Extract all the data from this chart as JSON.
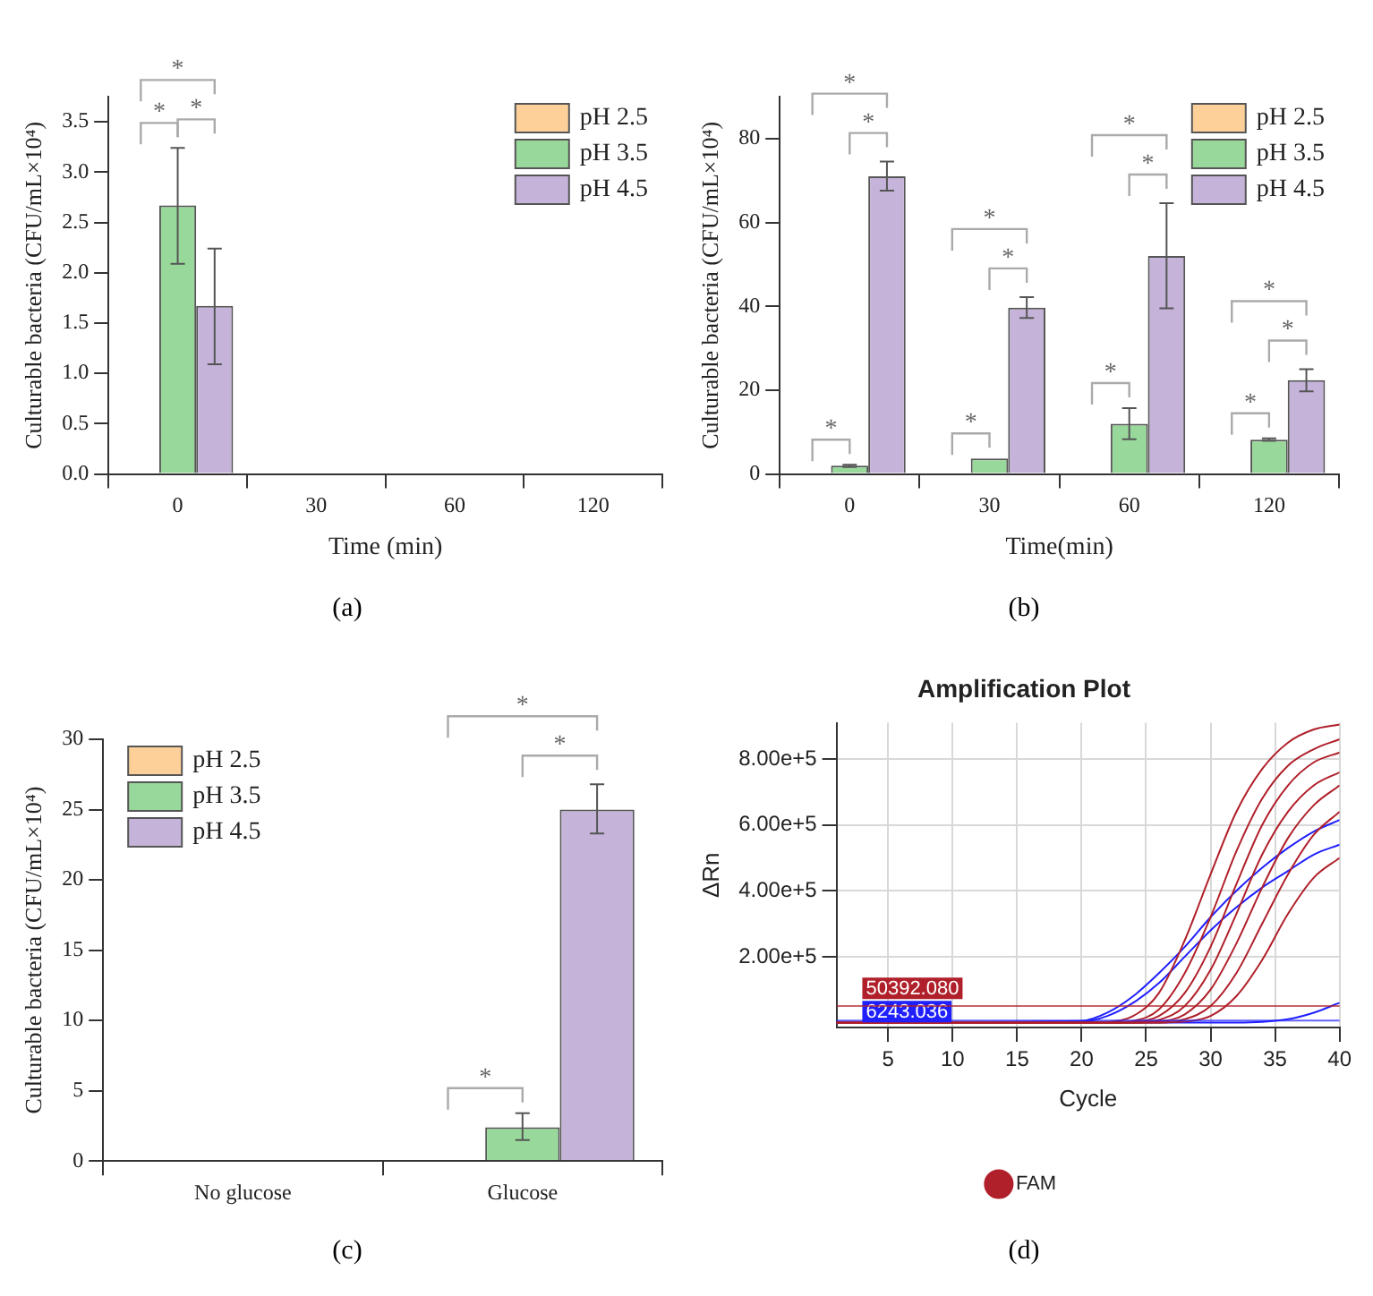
{
  "chart_data": [
    {
      "type": "bar",
      "categories": [
        "0",
        "30",
        "60",
        "120"
      ],
      "xlabel": "Time (min)",
      "ylabel": "Culturable bacteria (CFU/mL×10⁴)",
      "ylim": [
        0,
        3.75
      ],
      "yticks": [
        {
          "value": 0,
          "label": "0.0"
        },
        {
          "value": 0.5,
          "label": "0.5"
        },
        {
          "value": 1,
          "label": "1.0"
        },
        {
          "value": 1.5,
          "label": "1.5"
        },
        {
          "value": 2,
          "label": "2.0"
        },
        {
          "value": 2.5,
          "label": "2.5"
        },
        {
          "value": 3,
          "label": "3.0"
        },
        {
          "value": 3.5,
          "label": "3.5"
        }
      ],
      "legend": "top right",
      "series": [
        {
          "name": "pH 2.5",
          "color": "#fdd09a",
          "values": [
            0,
            0,
            0,
            0
          ]
        },
        {
          "name": "pH 3.5",
          "color": "#98d89a",
          "values": [
            2.67,
            0,
            0,
            0
          ],
          "errors": [
            [
              2.09,
              3.24
            ],
            null,
            null,
            null
          ]
        },
        {
          "name": "pH 4.5",
          "color": "#c5b3d9",
          "values": [
            1.67,
            0,
            0,
            0
          ],
          "errors": [
            [
              1.09,
              2.24
            ],
            null,
            null,
            null
          ]
        }
      ],
      "annotations": [
        "*",
        "*",
        "*",
        "(a)"
      ]
    },
    {
      "type": "bar",
      "categories": [
        "0",
        "30",
        "60",
        "120"
      ],
      "xlabel": "Time(min)",
      "ylabel": "Culturable bacteria (CFU/mL×10⁴)",
      "ylim": [
        0,
        90
      ],
      "yticks": [
        0,
        20,
        40,
        60,
        80
      ],
      "legend": "top right",
      "series": [
        {
          "name": "pH 2.5",
          "color": "#fdd09a",
          "values": [
            0,
            0,
            0,
            0
          ]
        },
        {
          "name": "pH 3.5",
          "color": "#98d89a",
          "values": [
            2,
            3.7,
            12,
            8.2
          ],
          "errors": [
            [
              1.7,
              2.2
            ],
            null,
            [
              8.3,
              15.7
            ],
            [
              7.9,
              8.5
            ]
          ]
        },
        {
          "name": "pH 4.5",
          "color": "#c5b3d9",
          "values": [
            71,
            39.7,
            52,
            22.4
          ],
          "errors": [
            [
              67.6,
              74.5
            ],
            [
              37.2,
              42.2
            ],
            [
              39.5,
              64.6
            ],
            [
              19.7,
              25
            ]
          ]
        }
      ],
      "annotations": [
        "*",
        "*",
        "*",
        "*",
        "*",
        "*",
        "*",
        "*",
        "*",
        "*",
        "*",
        "*",
        "(b)"
      ]
    },
    {
      "type": "bar",
      "categories": [
        "No glucose",
        "Glucose"
      ],
      "ylabel": "Culturable bacteria (CFU/mL×10⁴)",
      "ylim": [
        0,
        30
      ],
      "yticks": [
        0,
        5,
        10,
        15,
        20,
        25,
        30
      ],
      "legend": "top left",
      "series": [
        {
          "name": "pH 2.5",
          "color": "#fdd09a",
          "values": [
            0,
            0
          ]
        },
        {
          "name": "pH 3.5",
          "color": "#98d89a",
          "values": [
            0,
            2.4
          ],
          "errors": [
            null,
            [
              1.5,
              3.4
            ]
          ]
        },
        {
          "name": "pH 4.5",
          "color": "#c5b3d9",
          "values": [
            0,
            25
          ],
          "errors": [
            null,
            [
              23.3,
              26.8
            ]
          ]
        }
      ],
      "annotations": [
        "*",
        "*",
        "*",
        "(c)"
      ]
    },
    {
      "type": "line",
      "title": "Amplification Plot",
      "xlabel": "Cycle",
      "ylabel": "ΔRn",
      "x": [
        1,
        20,
        22,
        24,
        26,
        28,
        30,
        32,
        34,
        36,
        38,
        40
      ],
      "xlim": [
        1,
        40
      ],
      "xticks": [
        5,
        10,
        15,
        20,
        25,
        30,
        35,
        40
      ],
      "ylim": [
        -15000,
        910000
      ],
      "yticks": [
        {
          "value": 200000,
          "label": "2.00e+5"
        },
        {
          "value": 400000,
          "label": "4.00e+5"
        },
        {
          "value": 600000,
          "label": "6.00e+5"
        },
        {
          "value": 800000,
          "label": "8.00e+5"
        }
      ],
      "grid": true,
      "legend": "bottom",
      "marker": "none",
      "series": [
        {
          "name": "FAM",
          "color": "#b0202a",
          "values": [
            0,
            0,
            2000,
            20000,
            90000,
            250000,
            450000,
            640000,
            770000,
            850000,
            890000,
            905000
          ]
        },
        {
          "color": "#b0202a",
          "values": [
            0,
            0,
            0,
            5000,
            40000,
            150000,
            320000,
            520000,
            680000,
            780000,
            830000,
            860000
          ]
        },
        {
          "color": "#b0202a",
          "values": [
            0,
            0,
            0,
            2000,
            20000,
            90000,
            230000,
            420000,
            600000,
            720000,
            790000,
            820000
          ]
        },
        {
          "color": "#b0202a",
          "values": [
            0,
            0,
            0,
            0,
            8000,
            50000,
            160000,
            330000,
            510000,
            640000,
            720000,
            760000
          ]
        },
        {
          "color": "#b0202a",
          "values": [
            0,
            0,
            0,
            0,
            3000,
            25000,
            100000,
            240000,
            410000,
            560000,
            660000,
            720000
          ]
        },
        {
          "color": "#b0202a",
          "values": [
            0,
            0,
            0,
            0,
            0,
            10000,
            50000,
            150000,
            300000,
            450000,
            570000,
            640000
          ]
        },
        {
          "color": "#b0202a",
          "values": [
            0,
            0,
            0,
            0,
            0,
            3000,
            20000,
            80000,
            190000,
            330000,
            440000,
            500000
          ]
        },
        {
          "color": "#2020ff",
          "values": [
            0,
            5000,
            30000,
            80000,
            150000,
            230000,
            320000,
            400000,
            470000,
            530000,
            580000,
            615000
          ]
        },
        {
          "color": "#2020ff",
          "values": [
            0,
            3000,
            20000,
            60000,
            120000,
            200000,
            280000,
            350000,
            410000,
            460000,
            510000,
            540000
          ]
        },
        {
          "color": "#2020ff",
          "values": [
            0,
            0,
            0,
            0,
            0,
            0,
            0,
            0,
            2000,
            10000,
            30000,
            60000
          ]
        }
      ],
      "ref_lines": [
        {
          "axis": "y",
          "value": 50392.08,
          "label": "50392.080",
          "color": "#b0202a"
        },
        {
          "axis": "y",
          "value": 6243.036,
          "label": "6243.036",
          "color": "#2020ff"
        }
      ],
      "annotations": [
        "(d)"
      ]
    }
  ]
}
